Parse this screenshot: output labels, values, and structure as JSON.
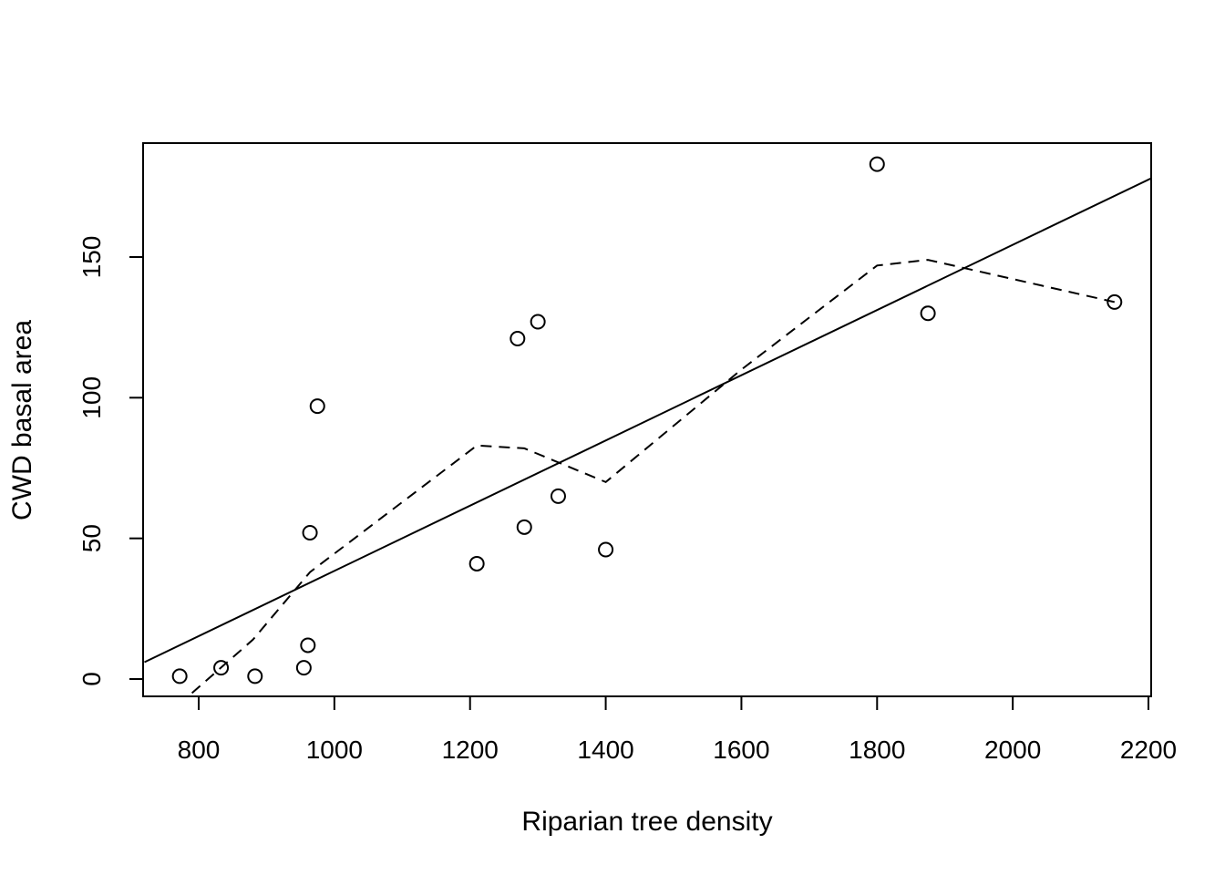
{
  "chart_data": {
    "type": "scatter",
    "title": "",
    "xlabel": "Riparian tree density",
    "ylabel": "CWD basal area",
    "xlim": [
      720,
      2200
    ],
    "ylim": [
      -6,
      190
    ],
    "xticks": [
      800,
      1000,
      1200,
      1400,
      1600,
      1800,
      2000,
      2200
    ],
    "xtick_labels": [
      "800",
      "1000",
      "1200",
      "1400",
      "1600",
      "1800",
      "2000",
      "2200"
    ],
    "yticks": [
      0,
      50,
      100,
      150
    ],
    "ytick_labels": [
      "0",
      "50",
      "100",
      "150"
    ],
    "grid": false,
    "legend": "none",
    "series": [
      {
        "style": "points",
        "marker": "open-circle",
        "points": [
          {
            "x": 772,
            "y": 1
          },
          {
            "x": 833,
            "y": 4
          },
          {
            "x": 883,
            "y": 1
          },
          {
            "x": 955,
            "y": 4
          },
          {
            "x": 961,
            "y": 12
          },
          {
            "x": 964,
            "y": 52
          },
          {
            "x": 975,
            "y": 97
          },
          {
            "x": 1210,
            "y": 41
          },
          {
            "x": 1270,
            "y": 121
          },
          {
            "x": 1280,
            "y": 54
          },
          {
            "x": 1300,
            "y": 127
          },
          {
            "x": 1330,
            "y": 65
          },
          {
            "x": 1400,
            "y": 46
          },
          {
            "x": 1800,
            "y": 183
          },
          {
            "x": 1875,
            "y": 130
          },
          {
            "x": 2150,
            "y": 134
          }
        ]
      },
      {
        "style": "line",
        "line": "solid",
        "points": [
          {
            "x": 720,
            "y": 6
          },
          {
            "x": 2204,
            "y": 178
          }
        ]
      },
      {
        "style": "line",
        "line": "dashed",
        "points": [
          {
            "x": 790,
            "y": -5
          },
          {
            "x": 880,
            "y": 14
          },
          {
            "x": 964,
            "y": 38
          },
          {
            "x": 1210,
            "y": 83
          },
          {
            "x": 1280,
            "y": 82
          },
          {
            "x": 1400,
            "y": 70
          },
          {
            "x": 1600,
            "y": 110
          },
          {
            "x": 1800,
            "y": 147
          },
          {
            "x": 1875,
            "y": 149
          },
          {
            "x": 2150,
            "y": 134
          }
        ]
      }
    ]
  }
}
